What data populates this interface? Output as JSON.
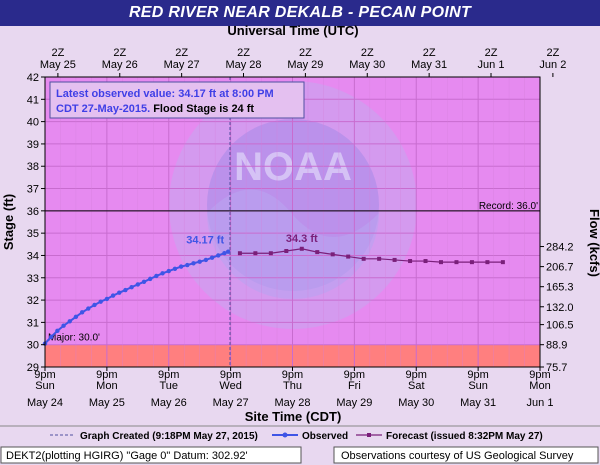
{
  "title": "RED RIVER NEAR DEKALB - PECAN POINT",
  "top_axis_title": "Universal Time (UTC)",
  "bottom_axis_title": "Site Time (CDT)",
  "left_axis_title": "Stage (ft)",
  "right_axis_title": "Flow (kcfs)",
  "info_box": {
    "line1": "Latest observed value: 34.17 ft at 8:00 PM",
    "line2a": "CDT 27-May-2015.",
    "line2b": " Flood Stage is 24 ft"
  },
  "top_ticks": [
    {
      "l1": "2Z",
      "l2": "May 25"
    },
    {
      "l1": "2Z",
      "l2": "May 26"
    },
    {
      "l1": "2Z",
      "l2": "May 27"
    },
    {
      "l1": "2Z",
      "l2": "May 28"
    },
    {
      "l1": "2Z",
      "l2": "May 29"
    },
    {
      "l1": "2Z",
      "l2": "May 30"
    },
    {
      "l1": "2Z",
      "l2": "May 31"
    },
    {
      "l1": "2Z",
      "l2": "Jun  1"
    },
    {
      "l1": "2Z",
      "l2": "Jun  2"
    }
  ],
  "bottom_ticks": [
    {
      "l1": "9pm",
      "l2": "Sun",
      "l3": "May 24"
    },
    {
      "l1": "9pm",
      "l2": "Mon",
      "l3": "May 25"
    },
    {
      "l1": "9pm",
      "l2": "Tue",
      "l3": "May 26"
    },
    {
      "l1": "9pm",
      "l2": "Wed",
      "l3": "May 27"
    },
    {
      "l1": "9pm",
      "l2": "Thu",
      "l3": "May 28"
    },
    {
      "l1": "9pm",
      "l2": "Fri",
      "l3": "May 29"
    },
    {
      "l1": "9pm",
      "l2": "Sat",
      "l3": "May 30"
    },
    {
      "l1": "9pm",
      "l2": "Sun",
      "l3": "May 31"
    },
    {
      "l1": "9pm",
      "l2": "Mon",
      "l3": "Jun 1"
    }
  ],
  "legend": {
    "created": "Graph Created (9:18PM May 27, 2015)",
    "observed": "Observed",
    "forecast": "Forecast (issued 8:32PM May 27)"
  },
  "footer": {
    "left": "DEKT2(plotting HGIRG) \"Gage 0\" Datum: 302.92'",
    "right": "Observations courtesy of US Geological Survey"
  },
  "watermark": "NOAA",
  "colors": {
    "banner": "#2a2a8c",
    "plot_bg": "#e68af0",
    "flood_zone": "#ff7f7f",
    "observed": "#3f55e6",
    "forecast": "#7a1f7a",
    "info_text": "#3f3fe6"
  },
  "chart_data": {
    "type": "line",
    "x_axis": "days since 9pm CDT Sun May 24, 2015",
    "xlim": [
      0,
      8
    ],
    "ylim": [
      29,
      42
    ],
    "yticks": [
      29,
      30,
      31,
      32,
      33,
      34,
      35,
      36,
      37,
      38,
      39,
      40,
      41,
      42
    ],
    "right_ticks": [
      {
        "stage": 29.0,
        "label": "75.7"
      },
      {
        "stage": 30.0,
        "label": "88.9"
      },
      {
        "stage": 30.9,
        "label": "106.5"
      },
      {
        "stage": 31.7,
        "label": "132.0"
      },
      {
        "stage": 32.6,
        "label": "165.3"
      },
      {
        "stage": 33.5,
        "label": "206.7"
      },
      {
        "stage": 34.4,
        "label": "284.2"
      }
    ],
    "thresholds": [
      {
        "name": "Record",
        "label": "Record: 36.0'",
        "value": 36.0
      },
      {
        "name": "Major",
        "label": "Major: 30.0'",
        "value": 30.0
      }
    ],
    "graph_created_x": 2.99,
    "series": [
      {
        "name": "Observed",
        "x": [
          0.0,
          0.1,
          0.2,
          0.3,
          0.4,
          0.5,
          0.6,
          0.7,
          0.8,
          0.9,
          1.0,
          1.1,
          1.2,
          1.3,
          1.4,
          1.5,
          1.6,
          1.7,
          1.8,
          1.9,
          2.0,
          2.1,
          2.2,
          2.3,
          2.4,
          2.5,
          2.6,
          2.7,
          2.8,
          2.9,
          2.96
        ],
        "y": [
          30.05,
          30.35,
          30.62,
          30.85,
          31.05,
          31.25,
          31.45,
          31.62,
          31.78,
          31.93,
          32.05,
          32.2,
          32.33,
          32.45,
          32.58,
          32.7,
          32.82,
          32.95,
          33.08,
          33.2,
          33.3,
          33.4,
          33.5,
          33.57,
          33.65,
          33.72,
          33.8,
          33.9,
          34.0,
          34.1,
          34.17
        ],
        "label": "34.17 ft"
      },
      {
        "name": "Forecast",
        "x": [
          3.15,
          3.4,
          3.65,
          3.9,
          4.15,
          4.4,
          4.65,
          4.9,
          5.15,
          5.4,
          5.65,
          5.9,
          6.15,
          6.4,
          6.65,
          6.9,
          7.15,
          7.4
        ],
        "y": [
          34.1,
          34.1,
          34.1,
          34.2,
          34.3,
          34.15,
          34.05,
          33.95,
          33.85,
          33.85,
          33.8,
          33.75,
          33.75,
          33.7,
          33.7,
          33.7,
          33.7,
          33.7
        ],
        "label": "34.3 ft",
        "label_x": 4.15,
        "label_y": 34.3
      }
    ]
  }
}
